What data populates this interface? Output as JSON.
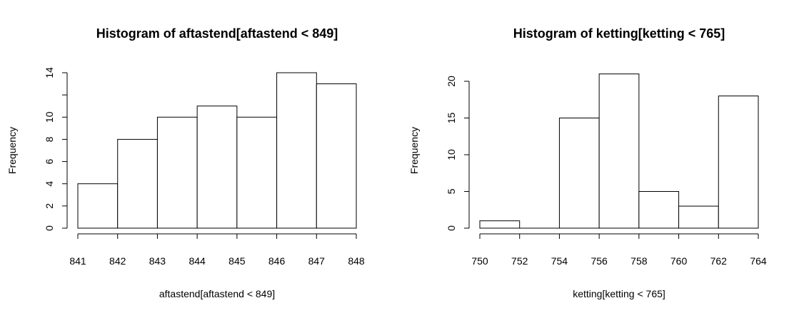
{
  "chart_data": [
    {
      "type": "bar",
      "title": "Histogram of aftastend[aftastend < 849]",
      "xlabel": "aftastend[aftastend < 849]",
      "ylabel": "Frequency",
      "bins": [
        [
          841,
          842
        ],
        [
          842,
          843
        ],
        [
          843,
          844
        ],
        [
          844,
          845
        ],
        [
          845,
          846
        ],
        [
          846,
          847
        ],
        [
          847,
          848
        ]
      ],
      "values": [
        4,
        8,
        10,
        11,
        10,
        14,
        13
      ],
      "xlim": [
        841,
        848
      ],
      "ylim": [
        0,
        14
      ],
      "xticks": [
        "841",
        "842",
        "843",
        "844",
        "845",
        "846",
        "847",
        "848"
      ],
      "yticks": [
        "0",
        "2",
        "4",
        "6",
        "8",
        "10",
        "12",
        "14"
      ],
      "ytick_labels_shown": [
        "0",
        "2",
        "4",
        "6",
        "8",
        "10",
        "",
        "14"
      ],
      "grid": false,
      "legend": "none"
    },
    {
      "type": "bar",
      "title": "Histogram of ketting[ketting < 765]",
      "xlabel": "ketting[ketting < 765]",
      "ylabel": "Frequency",
      "bins": [
        [
          750,
          752
        ],
        [
          752,
          754
        ],
        [
          754,
          756
        ],
        [
          756,
          758
        ],
        [
          758,
          760
        ],
        [
          760,
          762
        ],
        [
          762,
          764
        ]
      ],
      "values": [
        1,
        0,
        15,
        21,
        5,
        3,
        18
      ],
      "xlim": [
        750,
        764
      ],
      "ylim": [
        0,
        21
      ],
      "xticks": [
        "750",
        "752",
        "754",
        "756",
        "758",
        "760",
        "762",
        "764"
      ],
      "yticks": [
        "0",
        "5",
        "10",
        "15",
        "20"
      ],
      "ytick_labels_shown": [
        "0",
        "5",
        "10",
        "15",
        "20"
      ],
      "grid": false,
      "legend": "none"
    }
  ]
}
